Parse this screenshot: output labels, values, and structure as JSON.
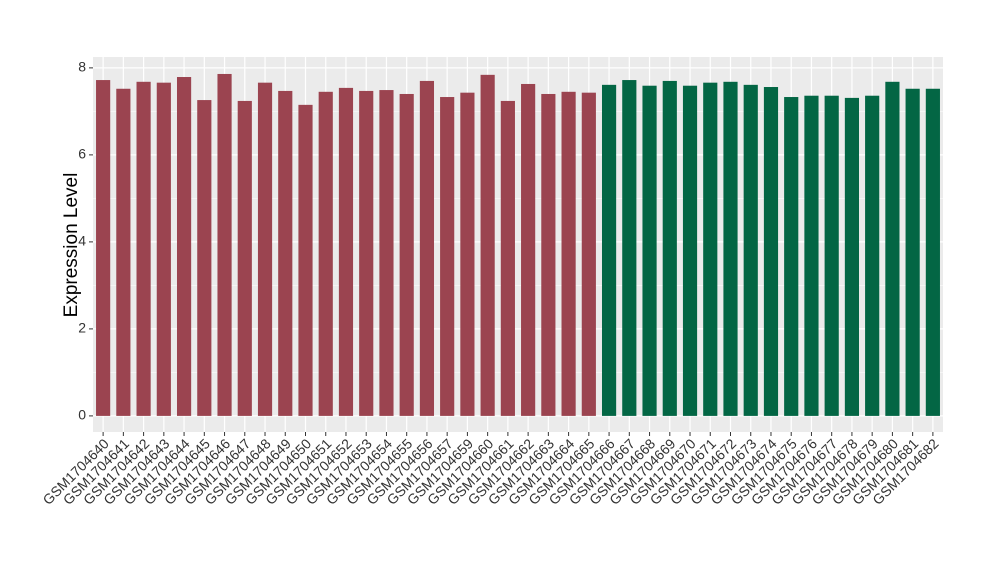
{
  "chart_data": {
    "type": "bar",
    "y_label": "Expression Level",
    "categories": [
      "GSM1704640",
      "GSM1704641",
      "GSM1704642",
      "GSM1704643",
      "GSM1704644",
      "GSM1704645",
      "GSM1704646",
      "GSM1704647",
      "GSM1704648",
      "GSM1704649",
      "GSM1704650",
      "GSM1704651",
      "GSM1704652",
      "GSM1704653",
      "GSM1704654",
      "GSM1704655",
      "GSM1704656",
      "GSM1704657",
      "GSM1704659",
      "GSM1704660",
      "GSM1704661",
      "GSM1704662",
      "GSM1704663",
      "GSM1704664",
      "GSM1704665",
      "GSM1704666",
      "GSM1704667",
      "GSM1704668",
      "GSM1704669",
      "GSM1704670",
      "GSM1704671",
      "GSM1704672",
      "GSM1704673",
      "GSM1704674",
      "GSM1704675",
      "GSM1704676",
      "GSM1704677",
      "GSM1704678",
      "GSM1704679",
      "GSM1704680",
      "GSM1704681",
      "GSM1704682"
    ],
    "values": [
      7.72,
      7.52,
      7.68,
      7.66,
      7.79,
      7.26,
      7.86,
      7.24,
      7.66,
      7.47,
      7.15,
      7.45,
      7.54,
      7.47,
      7.49,
      7.4,
      7.7,
      7.33,
      7.43,
      7.84,
      7.24,
      7.63,
      7.4,
      7.45,
      7.43,
      7.61,
      7.72,
      7.59,
      7.7,
      7.59,
      7.66,
      7.68,
      7.61,
      7.56,
      7.33,
      7.36,
      7.36,
      7.31,
      7.36,
      7.68,
      7.52,
      7.52
    ],
    "colors": [
      "#9b4450",
      "#9b4450",
      "#9b4450",
      "#9b4450",
      "#9b4450",
      "#9b4450",
      "#9b4450",
      "#9b4450",
      "#9b4450",
      "#9b4450",
      "#9b4450",
      "#9b4450",
      "#9b4450",
      "#9b4450",
      "#9b4450",
      "#9b4450",
      "#9b4450",
      "#9b4450",
      "#9b4450",
      "#9b4450",
      "#9b4450",
      "#9b4450",
      "#9b4450",
      "#9b4450",
      "#9b4450",
      "#036644",
      "#036644",
      "#036644",
      "#036644",
      "#036644",
      "#036644",
      "#036644",
      "#036644",
      "#036644",
      "#036644",
      "#036644",
      "#036644",
      "#036644",
      "#036644",
      "#036644",
      "#036644",
      "#036644"
    ],
    "ylim": [
      -0.37,
      8.25
    ],
    "yticks": [
      0,
      2,
      4,
      6,
      8
    ],
    "grid": true
  }
}
